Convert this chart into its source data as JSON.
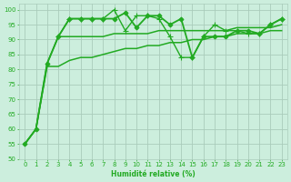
{
  "xlabel": "Humidité relative (%)",
  "bg_color": "#cceedd",
  "grid_color": "#aaccbb",
  "line_color": "#22aa22",
  "xlim": [
    -0.5,
    23.5
  ],
  "ylim": [
    50,
    102
  ],
  "yticks": [
    50,
    55,
    60,
    65,
    70,
    75,
    80,
    85,
    90,
    95,
    100
  ],
  "xticks": [
    0,
    1,
    2,
    3,
    4,
    5,
    6,
    7,
    8,
    9,
    10,
    11,
    12,
    13,
    14,
    15,
    16,
    17,
    18,
    19,
    20,
    21,
    22,
    23
  ],
  "series": [
    {
      "x": [
        0,
        1,
        2,
        3,
        4,
        5,
        6,
        7,
        8,
        9,
        10,
        11,
        12,
        13,
        14,
        15,
        16,
        17,
        18,
        19,
        20,
        21,
        22,
        23
      ],
      "y": [
        55,
        60,
        82,
        91,
        97,
        97,
        97,
        97,
        97,
        99,
        94,
        98,
        98,
        95,
        97,
        84,
        91,
        91,
        91,
        93,
        93,
        92,
        95,
        97
      ],
      "marker": "D",
      "markersize": 2.5,
      "linewidth": 1.3,
      "linestyle": "-"
    },
    {
      "x": [
        3,
        4,
        5,
        6,
        7,
        8,
        9,
        10,
        11,
        12,
        13,
        14,
        15,
        16,
        17,
        18,
        19,
        20,
        21,
        22,
        23
      ],
      "y": [
        91,
        97,
        97,
        97,
        97,
        100,
        93,
        98,
        98,
        97,
        91,
        84,
        84,
        91,
        95,
        93,
        93,
        92,
        92,
        95,
        97
      ],
      "marker": "+",
      "markersize": 4.5,
      "linewidth": 1.0,
      "linestyle": "-"
    },
    {
      "x": [
        0,
        1,
        2,
        3,
        4,
        5,
        6,
        7,
        8,
        9,
        10,
        11,
        12,
        13,
        14,
        15,
        16,
        17,
        18,
        19,
        20,
        21,
        22,
        23
      ],
      "y": [
        55,
        60,
        82,
        91,
        91,
        91,
        91,
        91,
        92,
        92,
        92,
        92,
        93,
        93,
        93,
        93,
        93,
        93,
        93,
        94,
        94,
        94,
        94,
        95
      ],
      "marker": null,
      "markersize": 0,
      "linewidth": 1.1,
      "linestyle": "-"
    },
    {
      "x": [
        0,
        1,
        2,
        3,
        4,
        5,
        6,
        7,
        8,
        9,
        10,
        11,
        12,
        13,
        14,
        15,
        16,
        17,
        18,
        19,
        20,
        21,
        22,
        23
      ],
      "y": [
        55,
        60,
        81,
        81,
        83,
        84,
        84,
        85,
        86,
        87,
        87,
        88,
        88,
        89,
        89,
        90,
        90,
        91,
        91,
        92,
        92,
        92,
        93,
        93
      ],
      "marker": null,
      "markersize": 0,
      "linewidth": 1.1,
      "linestyle": "-"
    }
  ]
}
